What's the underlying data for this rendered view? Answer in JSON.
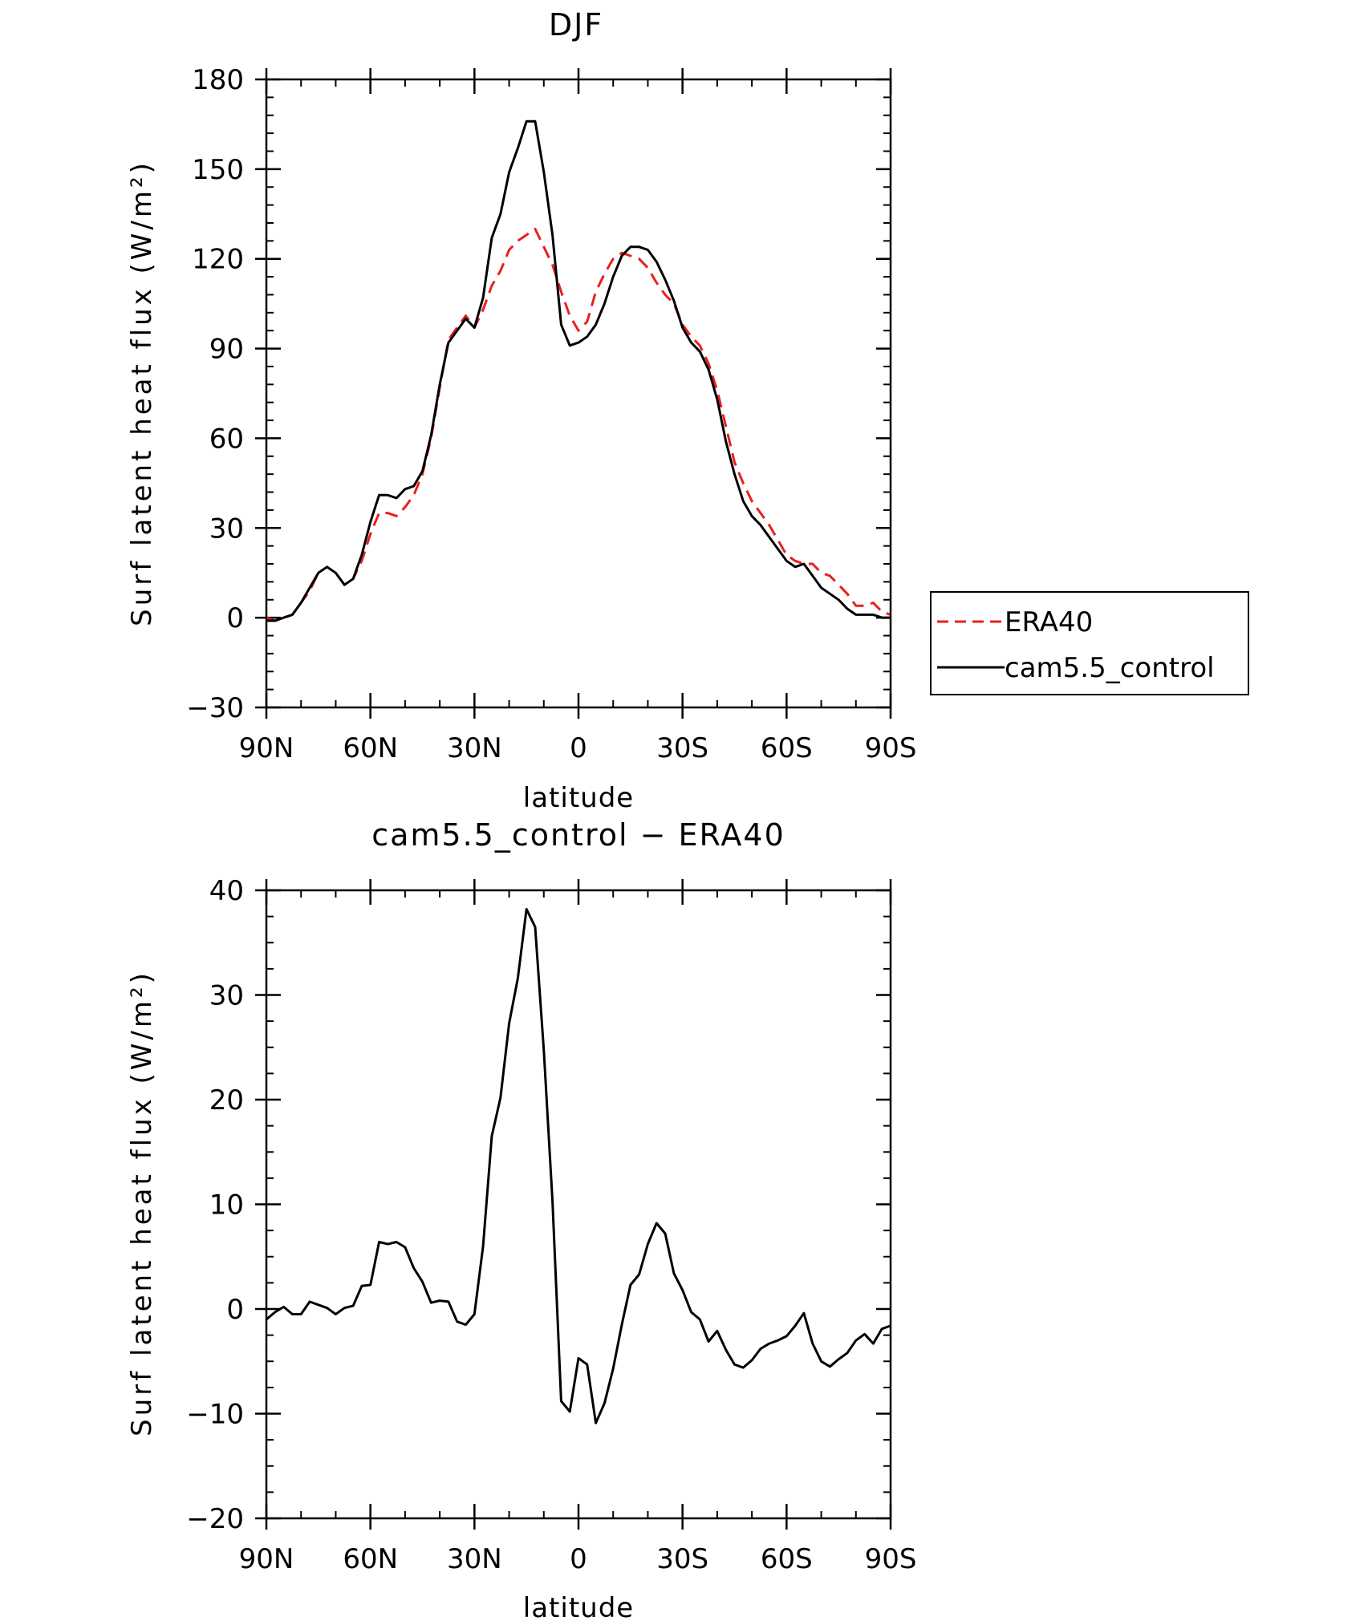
{
  "chart_data": [
    {
      "type": "line",
      "title": "DJF",
      "xlabel": "latitude",
      "ylabel": "Surf latent heat flux (W/m²)",
      "x_ticks": [
        "90N",
        "60N",
        "30N",
        "0",
        "30S",
        "60S",
        "90S"
      ],
      "y_ticks": [
        "180",
        "150",
        "120",
        "90",
        "60",
        "30",
        "0",
        "−30"
      ],
      "xlim": [
        -90,
        90
      ],
      "ylim": [
        -30,
        180
      ],
      "legend_position": "right",
      "series": [
        {
          "name": "ERA40",
          "color": "#e8201f",
          "style": "dashed",
          "x": [
            -90,
            -87.5,
            -85,
            -82.5,
            -80,
            -77.5,
            -75,
            -72.5,
            -70,
            -67.5,
            -65,
            -62.5,
            -60,
            -57.5,
            -55,
            -52.5,
            -50,
            -47.5,
            -45,
            -42.5,
            -40,
            -37.5,
            -35,
            -32.5,
            -30,
            -27.5,
            -25,
            -22.5,
            -20,
            -17.5,
            -15,
            -12.5,
            -10,
            -7.5,
            -5,
            -2.5,
            0,
            2.5,
            5,
            7.5,
            10,
            12.5,
            15,
            17.5,
            20,
            22.5,
            25,
            27.5,
            30,
            32.5,
            35,
            37.5,
            40,
            42.5,
            45,
            47.5,
            50,
            52.5,
            55,
            57.5,
            60,
            62.5,
            65,
            67.5,
            70,
            72.5,
            75,
            77.5,
            80,
            82.5,
            85,
            87.5,
            90
          ],
          "values": [
            0,
            -1,
            0,
            1,
            5,
            9,
            15,
            17,
            15,
            11,
            13,
            19,
            28,
            35,
            35,
            34,
            37,
            41,
            48,
            60,
            77,
            93,
            97,
            101,
            97,
            103,
            111,
            116,
            123,
            126,
            128,
            130,
            124,
            118,
            109,
            101,
            96,
            99,
            109,
            115,
            120,
            122,
            121,
            120,
            117,
            112,
            108,
            105,
            98,
            94,
            91,
            85,
            76,
            64,
            52,
            45,
            39,
            35,
            31,
            26,
            21,
            19,
            18,
            18,
            15,
            14,
            11,
            8,
            4,
            4,
            5,
            2,
            1
          ]
        },
        {
          "name": "cam5.5_control",
          "color": "#000000",
          "style": "solid",
          "x": [
            -90,
            -87.5,
            -85,
            -82.5,
            -80,
            -77.5,
            -75,
            -72.5,
            -70,
            -67.5,
            -65,
            -62.5,
            -60,
            -57.5,
            -55,
            -52.5,
            -50,
            -47.5,
            -45,
            -42.5,
            -40,
            -37.5,
            -35,
            -32.5,
            -30,
            -27.5,
            -25,
            -22.5,
            -20,
            -17.5,
            -15,
            -12.5,
            -10,
            -7.5,
            -5,
            -2.5,
            0,
            2.5,
            5,
            7.5,
            10,
            12.5,
            15,
            17.5,
            20,
            22.5,
            25,
            27.5,
            30,
            32.5,
            35,
            37.5,
            40,
            42.5,
            45,
            47.5,
            50,
            52.5,
            55,
            57.5,
            60,
            62.5,
            65,
            67.5,
            70,
            72.5,
            75,
            77.5,
            80,
            82.5,
            85,
            87.5,
            90
          ],
          "values": [
            -1,
            -1,
            0,
            1,
            5,
            10,
            15,
            17,
            15,
            11,
            13,
            21,
            32,
            41,
            41,
            40,
            43,
            44,
            49,
            61,
            78,
            92,
            96,
            100,
            97,
            107,
            127,
            135,
            149,
            157,
            166,
            166,
            149,
            128,
            98,
            91,
            92,
            94,
            98,
            105,
            114,
            121,
            124,
            124,
            123,
            119,
            113,
            106,
            97,
            92,
            89,
            83,
            73,
            59,
            48,
            39,
            34,
            31,
            27,
            23,
            19,
            17,
            18,
            14,
            10,
            8,
            6,
            3,
            1,
            1,
            1,
            0,
            0
          ]
        }
      ]
    },
    {
      "type": "line",
      "title": "cam5.5_control − ERA40",
      "xlabel": "latitude",
      "ylabel": "Surf latent heat flux (W/m²)",
      "x_ticks": [
        "90N",
        "60N",
        "30N",
        "0",
        "30S",
        "60S",
        "90S"
      ],
      "y_ticks": [
        "40",
        "30",
        "20",
        "10",
        "0",
        "−10",
        "−20"
      ],
      "xlim": [
        -90,
        90
      ],
      "ylim": [
        -20,
        40
      ],
      "series": [
        {
          "color": "#000000",
          "style": "solid",
          "x": [
            -90,
            -87.5,
            -85,
            -82.5,
            -80,
            -77.5,
            -75,
            -72.5,
            -70,
            -67.5,
            -65,
            -62.5,
            -60,
            -57.5,
            -55,
            -52.5,
            -50,
            -47.5,
            -45,
            -42.5,
            -40,
            -37.5,
            -35,
            -32.5,
            -30,
            -27.5,
            -25,
            -22.5,
            -20,
            -17.5,
            -15,
            -12.5,
            -10,
            -7.5,
            -5,
            -2.5,
            0,
            2.5,
            5,
            7.5,
            10,
            12.5,
            15,
            17.5,
            20,
            22.5,
            25,
            27.5,
            30,
            32.5,
            35,
            37.5,
            40,
            42.5,
            45,
            47.5,
            50,
            52.5,
            55,
            57.5,
            60,
            62.5,
            65,
            67.5,
            70,
            72.5,
            75,
            77.5,
            80,
            82.5,
            85,
            87.5,
            90
          ],
          "values": [
            -1,
            -0.3,
            0.2,
            -0.5,
            -0.5,
            0.7,
            0.4,
            0.1,
            -0.5,
            0.1,
            0.3,
            2.2,
            2.3,
            6.4,
            6.2,
            6.4,
            5.9,
            3.9,
            2.6,
            0.6,
            0.8,
            0.7,
            -1.2,
            -1.5,
            -0.5,
            6,
            16.5,
            20.2,
            27.3,
            31.6,
            38.2,
            36.5,
            24.7,
            10.3,
            -8.8,
            -9.8,
            -4.7,
            -5.3,
            -10.9,
            -9,
            -5.7,
            -1.5,
            2.3,
            3.3,
            6.2,
            8.2,
            7.2,
            3.4,
            1.8,
            -0.3,
            -1,
            -3.1,
            -2.1,
            -3.9,
            -5.3,
            -5.6,
            -4.9,
            -3.8,
            -3.3,
            -3,
            -2.6,
            -1.6,
            -0.4,
            -3.3,
            -5,
            -5.5,
            -4.8,
            -4.2,
            -3,
            -2.4,
            -3.3,
            -1.9,
            -1.6
          ]
        }
      ]
    }
  ]
}
